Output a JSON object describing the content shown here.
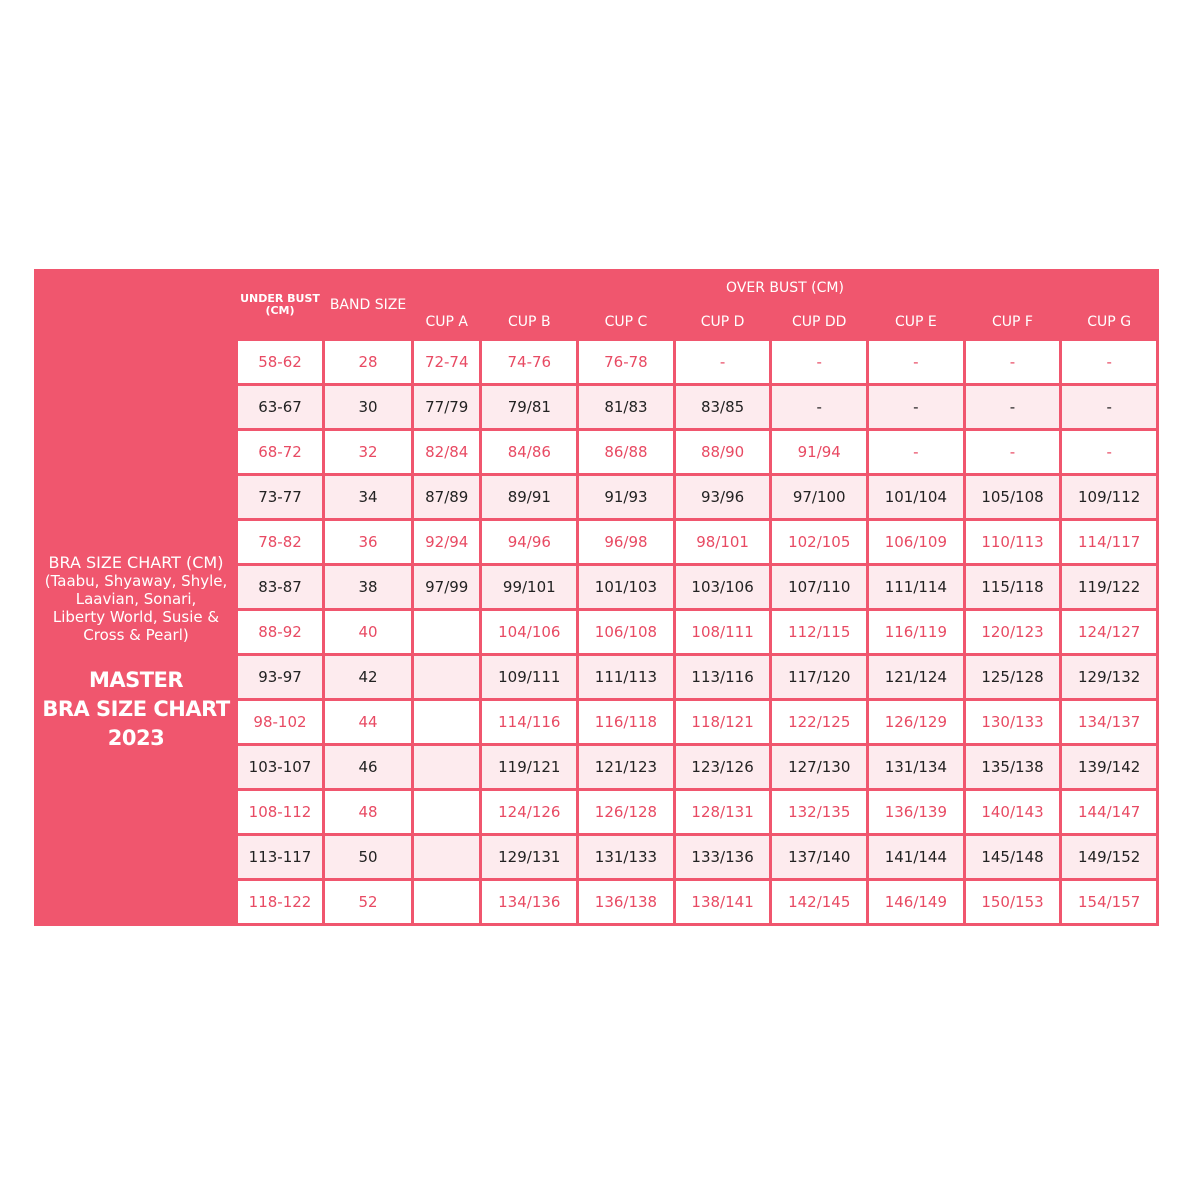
{
  "side_panel": {
    "subtitle_lines": [
      "BRA SIZE CHART (CM)",
      "(Taabu, Shyaway, Shyle,",
      "Laavian, Sonari,",
      "Liberty World, Susie &",
      "Cross & Pearl)"
    ],
    "title_lines": [
      "MASTER",
      "BRA SIZE CHART",
      "2023"
    ]
  },
  "header": {
    "under_bust": "UNDER BUST",
    "under_bust_unit": "(CM)",
    "band_size": "BAND SIZE",
    "over_bust": "OVER BUST  (CM)",
    "cups": [
      "CUP A",
      "CUP B",
      "CUP C",
      "CUP D",
      "CUP DD",
      "CUP E",
      "CUP F",
      "CUP G"
    ]
  },
  "colors": {
    "accent": "#f0566e",
    "row_alt": "#fdebee",
    "accent_text": "#e84a63"
  },
  "rows": [
    [
      "58-62",
      "28",
      "72-74",
      "74-76",
      "76-78",
      "-",
      "-",
      "-",
      "-",
      "-"
    ],
    [
      "63-67",
      "30",
      "77/79",
      "79/81",
      "81/83",
      "83/85",
      "-",
      "-",
      "-",
      "-"
    ],
    [
      "68-72",
      "32",
      "82/84",
      "84/86",
      "86/88",
      "88/90",
      "91/94",
      "-",
      "-",
      "-"
    ],
    [
      "73-77",
      "34",
      "87/89",
      "89/91",
      "91/93",
      "93/96",
      "97/100",
      "101/104",
      "105/108",
      "109/112"
    ],
    [
      "78-82",
      "36",
      "92/94",
      "94/96",
      "96/98",
      "98/101",
      "102/105",
      "106/109",
      "110/113",
      "114/117"
    ],
    [
      "83-87",
      "38",
      "97/99",
      "99/101",
      "101/103",
      "103/106",
      "107/110",
      "111/114",
      "115/118",
      "119/122"
    ],
    [
      "88-92",
      "40",
      "",
      "104/106",
      "106/108",
      "108/111",
      "112/115",
      "116/119",
      "120/123",
      "124/127"
    ],
    [
      "93-97",
      "42",
      "",
      "109/111",
      "111/113",
      "113/116",
      "117/120",
      "121/124",
      "125/128",
      "129/132"
    ],
    [
      "98-102",
      "44",
      "",
      "114/116",
      "116/118",
      "118/121",
      "122/125",
      "126/129",
      "130/133",
      "134/137"
    ],
    [
      "103-107",
      "46",
      "",
      "119/121",
      "121/123",
      "123/126",
      "127/130",
      "131/134",
      "135/138",
      "139/142"
    ],
    [
      "108-112",
      "48",
      "",
      "124/126",
      "126/128",
      "128/131",
      "132/135",
      "136/139",
      "140/143",
      "144/147"
    ],
    [
      "113-117",
      "50",
      "",
      "129/131",
      "131/133",
      "133/136",
      "137/140",
      "141/144",
      "145/148",
      "149/152"
    ],
    [
      "118-122",
      "52",
      "",
      "134/136",
      "136/138",
      "138/141",
      "142/145",
      "146/149",
      "150/153",
      "154/157"
    ]
  ]
}
